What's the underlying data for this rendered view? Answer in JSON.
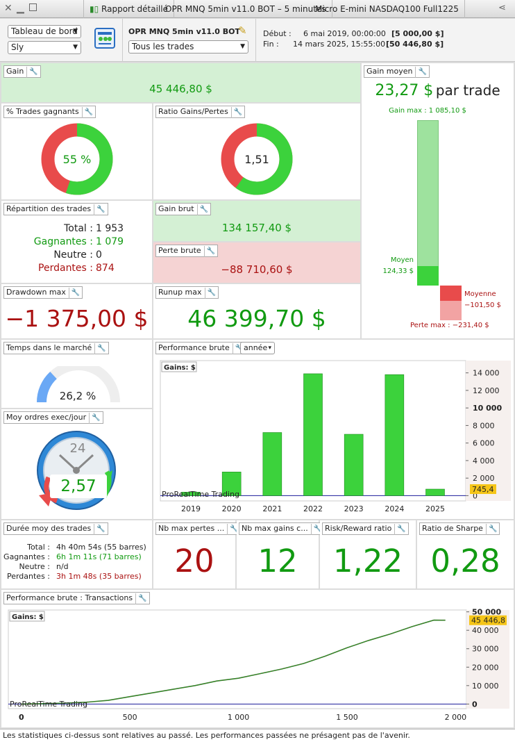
{
  "titlebar": {
    "report_tab": "Rapport détaillé",
    "strategy_tab": "OPR MNQ 5min v11.0 BOT – 5 minutes",
    "instrument_tab": "Micro E-mini NASDAQ100 Full1225"
  },
  "header": {
    "view_select": "Tableau de bord",
    "user_select": "Sly",
    "strategy_name": "OPR MNQ 5min v11.0 BOT",
    "trades_filter": "Tous les trades",
    "start_label": "Début :",
    "start_date": "6 mai 2019, 00:00:00",
    "start_capital": "[5 000,00 $]",
    "end_label": "Fin :",
    "end_date": "14 mars 2025, 15:55:00",
    "end_capital": "[50 446,80 $]"
  },
  "gain": {
    "title": "Gain",
    "value": "45 446,80 $"
  },
  "gain_moyen": {
    "title": "Gain moyen",
    "value": "23,27 $",
    "suffix": "par trade",
    "gain_max": "Gain max : 1 085,10 $",
    "moyen_label": "Moyen",
    "moyen_value": "124,33 $",
    "moyenne_label": "Moyenne",
    "moyenne_value": "−101,50 $",
    "perte_max": "Perte max : −231,40 $",
    "win_max": 1085.1,
    "win_avg": 124.33,
    "loss_avg": 101.5,
    "loss_max": 231.4
  },
  "win_pct": {
    "title": "% Trades gagnants",
    "value": "55 %",
    "fraction": 0.55
  },
  "ratio_gp": {
    "title": "Ratio Gains/Pertes",
    "value": "1,51",
    "fraction": 0.6
  },
  "repartition": {
    "title": "Répartition des trades",
    "total_label": "Total :",
    "total": "1 953",
    "wins_label": "Gagnantes :",
    "wins": "1 079",
    "neutral_label": "Neutre :",
    "neutral": "0",
    "losses_label": "Perdantes :",
    "losses": "874"
  },
  "gain_brut": {
    "title": "Gain brut",
    "value": "134 157,40 $"
  },
  "perte_brute": {
    "title": "Perte brute",
    "value": "−88 710,60 $"
  },
  "drawdown": {
    "title": "Drawdown max",
    "value": "−1 375,00 $"
  },
  "runup": {
    "title": "Runup max",
    "value": "46 399,70 $"
  },
  "temps_marche": {
    "title": "Temps dans le marché",
    "value": "26,2 %",
    "fraction": 0.262
  },
  "perf_brute": {
    "title": "Performance brute",
    "period": "année"
  },
  "ordres": {
    "title": "Moy ordres exec/jour",
    "value": "2,57",
    "clock_label": "24"
  },
  "duree": {
    "title": "Durée moy des trades",
    "total_label": "Total :",
    "total": "4h 40m 54s (55 barres)",
    "wins_label": "Gagnantes :",
    "wins": "6h 1m 11s (71 barres)",
    "neutral_label": "Neutre :",
    "neutral": "n/d",
    "losses_label": "Perdantes :",
    "losses": "3h 1m 48s (35 barres)"
  },
  "kpis": [
    {
      "title": "Nb max pertes ...",
      "value": "20",
      "color": "#aa1111"
    },
    {
      "title": "Nb max gains c...",
      "value": "12",
      "color": "#119a11"
    },
    {
      "title": "Risk/Reward ratio",
      "value": "1,22",
      "color": "#119a11"
    },
    {
      "title": "Ratio de Sharpe",
      "value": "0,28",
      "color": "#119a11"
    }
  ],
  "perf_trans": {
    "title": "Performance brute : Transactions"
  },
  "footer": "Les statistiques ci-dessus sont relatives au passé. Les performances passées ne présagent pas de l'avenir.",
  "chart_data": [
    {
      "type": "bar",
      "legend": "Gains: $",
      "watermark": "ProRealTime Trading",
      "categories": [
        "2019",
        "2020",
        "2021",
        "2022",
        "2023",
        "2024",
        "2025"
      ],
      "values": [
        400,
        2700,
        7200,
        13900,
        7000,
        13800,
        745.4
      ],
      "last_label": "745,4",
      "yticks": [
        "0",
        "2 000",
        "4 000",
        "6 000",
        "8 000",
        "10 000",
        "12 000",
        "14 000"
      ],
      "ylim": [
        -600,
        15400
      ],
      "grid": false,
      "bar_color": "#3cd23c"
    },
    {
      "type": "line",
      "legend": "Gains: $",
      "watermark": "ProRealTime Trading",
      "x": [
        0,
        100,
        200,
        300,
        400,
        500,
        600,
        700,
        800,
        900,
        1000,
        1100,
        1200,
        1300,
        1400,
        1500,
        1600,
        1700,
        1800,
        1900,
        1953
      ],
      "y": [
        0,
        200,
        500,
        1000,
        2000,
        4000,
        6000,
        8000,
        10000,
        12500,
        14000,
        16500,
        19000,
        22000,
        26000,
        30500,
        34500,
        38000,
        42000,
        45500,
        45446.8
      ],
      "last_label": "45 446,8",
      "xticks": [
        "0",
        "500",
        "1 000",
        "1 500",
        "2 000"
      ],
      "yticks": [
        "0",
        "10 000",
        "20 000",
        "30 000",
        "40 000",
        "50 000"
      ],
      "xlim": [
        -60,
        2050
      ],
      "ylim": [
        -2500,
        51000
      ],
      "grid": false
    }
  ]
}
